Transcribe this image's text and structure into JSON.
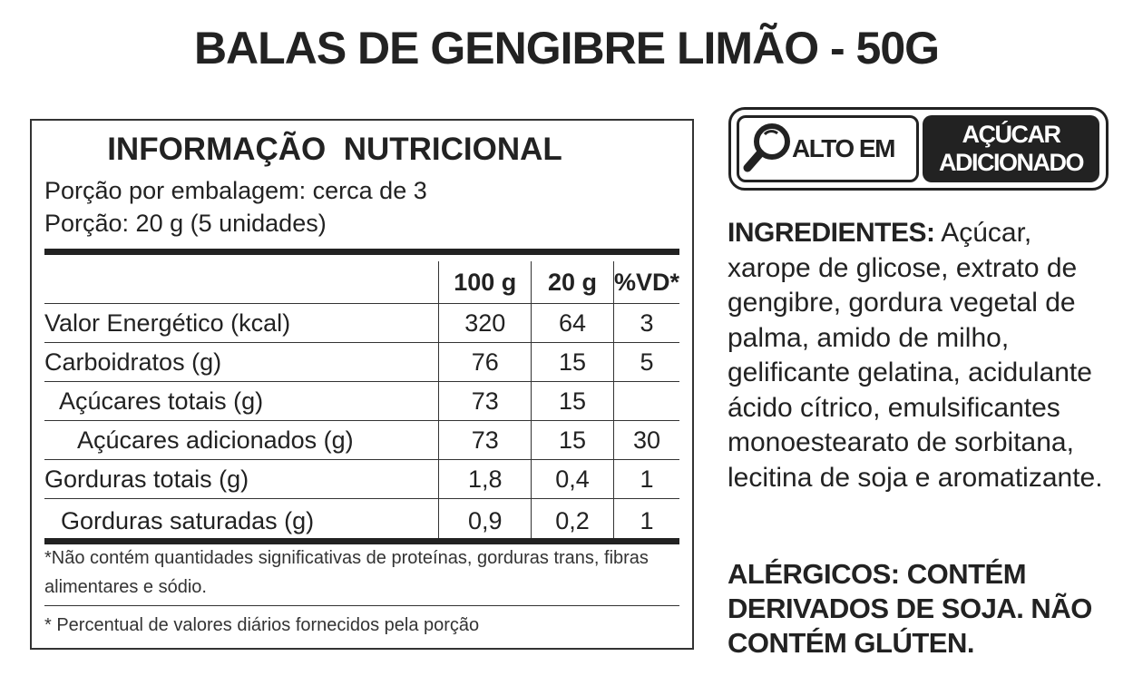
{
  "title": "BALAS DE GENGIBRE LIMÃO - 50G",
  "nutrition": {
    "heading": "INFORMAÇÃO  NUTRICIONAL",
    "servings_per_package": "Porção por embalagem: cerca de 3",
    "serving_size": "Porção: 20 g (5 unidades)",
    "table": {
      "header": [
        "100 g",
        "20 g",
        "%VD*"
      ],
      "rows": [
        {
          "label": "Valor Energético (kcal)",
          "values": [
            "320",
            "64",
            "3"
          ]
        },
        {
          "label": "Carboidratos (g)",
          "values": [
            "76",
            "15",
            "5"
          ]
        },
        {
          "label": "Açúcares totais (g)",
          "values": [
            "73",
            "15",
            null
          ]
        },
        {
          "label": "Açúcares adicionados (g)",
          "values": [
            "73",
            "15",
            "30"
          ]
        },
        {
          "label": "Gorduras totais (g)",
          "values": [
            "1,8",
            "0,4",
            "1"
          ]
        },
        {
          "label": "Gorduras saturadas (g)",
          "values": [
            "0,9",
            "0,2",
            "1"
          ]
        }
      ]
    },
    "footnotes": [
      "*Não contém quantidades significativas de proteínas, gorduras trans, fibras alimentares e sódio.",
      "* Percentual de valores diários fornecidos pela porção"
    ]
  },
  "badge": {
    "left": "ALTO EM",
    "right": [
      "AÇÚCAR",
      "ADICIONADO"
    ]
  },
  "ingredients": {
    "label": "INGREDIENTES:",
    "text": "Açúcar, xarope de glicose, extrato de gengibre, gordura vegetal de palma, amido de milho, gelificante gelatina, acidulante ácido cítrico, emulsificantes monoestearato de sorbitana, lecitina de soja e aromatizante."
  },
  "allergens": "ALÉRGICOS: CONTÉM DERIVADOS DE SOJA. NÃO CONTÉM GLÚTEN."
}
